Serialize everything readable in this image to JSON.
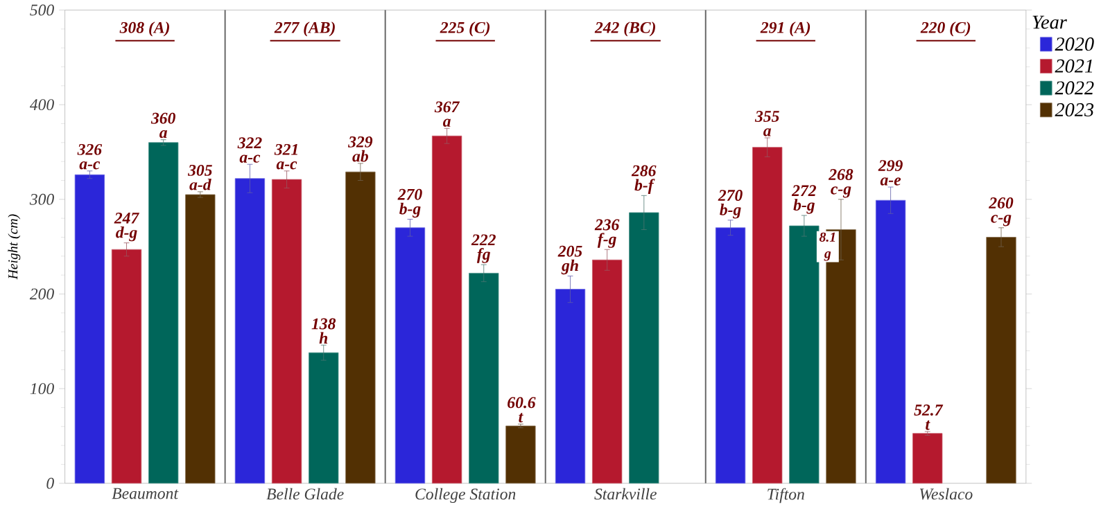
{
  "chart_data": {
    "type": "bar",
    "ylabel": "Height (cm)",
    "legend_title": "Year",
    "categories": [
      "Beaumont",
      "Belle Glade",
      "College Station",
      "Starkville",
      "Tifton",
      "Weslaco"
    ],
    "series": [
      {
        "name": "2020",
        "color": "#2b26d9",
        "values": [
          326,
          322,
          270,
          205,
          270,
          299
        ],
        "errors": [
          4,
          15,
          9,
          14,
          8,
          14
        ],
        "value_labels": [
          "326 a-c",
          "322 a-c",
          "270 b-g",
          "205 gh",
          "270 b-g",
          "299 a-e"
        ]
      },
      {
        "name": "2021",
        "color": "#b5192e",
        "values": [
          247,
          321,
          367,
          236,
          355,
          52.7
        ],
        "errors": [
          7,
          9,
          8,
          11,
          10,
          2
        ],
        "value_labels": [
          "247 d-g",
          "321 a-c",
          "367 a",
          "236 f-g",
          "355 a",
          "52.7 t"
        ]
      },
      {
        "name": "2022",
        "color": "#00665a",
        "values": [
          360,
          138,
          222,
          286,
          272,
          null
        ],
        "errors": [
          3,
          8,
          9,
          18,
          11,
          null
        ],
        "value_labels": [
          "360 a",
          "138 h",
          "222 fg",
          "286 b-f",
          "272 b-g",
          null
        ]
      },
      {
        "name": "2023",
        "color": "#523003",
        "values": [
          305,
          329,
          60.6,
          null,
          268,
          260
        ],
        "errors": [
          3,
          9,
          2,
          null,
          32,
          10
        ],
        "value_labels": [
          "305 a-d",
          "329 ab",
          "60.6 t",
          null,
          "268 c-g",
          "260 c-g"
        ]
      }
    ],
    "annotations": [
      "308 (A)",
      "277 (AB)",
      "225 (C)",
      "242 (BC)",
      "291 (A)",
      "220 (C)",
      "8.1 g"
    ],
    "ylim": [
      0,
      500
    ],
    "yticks": [
      0,
      100,
      200,
      300,
      400,
      500
    ],
    "legend": "right"
  }
}
